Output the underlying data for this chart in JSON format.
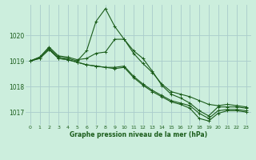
{
  "title": "Graphe pression niveau de la mer (hPa)",
  "bg_color": "#cceedd",
  "grid_color": "#aacccc",
  "line_color": "#1a5c1a",
  "x_labels": [
    "0",
    "1",
    "2",
    "3",
    "4",
    "5",
    "6",
    "7",
    "8",
    "9",
    "10",
    "11",
    "12",
    "13",
    "14",
    "15",
    "16",
    "17",
    "18",
    "19",
    "20",
    "21",
    "22",
    "23"
  ],
  "xlim": [
    -0.5,
    23.5
  ],
  "ylim": [
    1016.5,
    1021.2
  ],
  "yticks": [
    1017,
    1018,
    1019,
    1020
  ],
  "series": [
    [
      1019.0,
      1019.15,
      1019.5,
      1019.15,
      1019.1,
      1019.0,
      1019.4,
      1020.55,
      1021.05,
      1020.35,
      1019.85,
      1019.4,
      1019.1,
      1018.6,
      1018.05,
      1017.7,
      1017.55,
      1017.35,
      1017.05,
      1016.85,
      1017.2,
      1017.2,
      1017.2,
      1017.15
    ],
    [
      1019.0,
      1019.15,
      1019.55,
      1019.2,
      1019.15,
      1019.05,
      1019.1,
      1019.3,
      1019.35,
      1019.85,
      1019.85,
      1019.3,
      1018.9,
      1018.55,
      1018.1,
      1017.8,
      1017.7,
      1017.6,
      1017.45,
      1017.3,
      1017.25,
      1017.3,
      1017.25,
      1017.2
    ],
    [
      1019.0,
      1019.1,
      1019.45,
      1019.1,
      1019.05,
      1018.95,
      1018.85,
      1018.8,
      1018.75,
      1018.75,
      1018.8,
      1018.4,
      1018.1,
      1017.85,
      1017.65,
      1017.45,
      1017.35,
      1017.25,
      1016.95,
      1016.75,
      1017.05,
      1017.1,
      1017.1,
      1017.05
    ],
    [
      1019.0,
      1019.1,
      1019.45,
      1019.1,
      1019.05,
      1018.95,
      1018.85,
      1018.8,
      1018.75,
      1018.7,
      1018.75,
      1018.35,
      1018.05,
      1017.8,
      1017.6,
      1017.4,
      1017.3,
      1017.15,
      1016.75,
      1016.65,
      1016.95,
      1017.05,
      1017.05,
      1017.0
    ]
  ]
}
